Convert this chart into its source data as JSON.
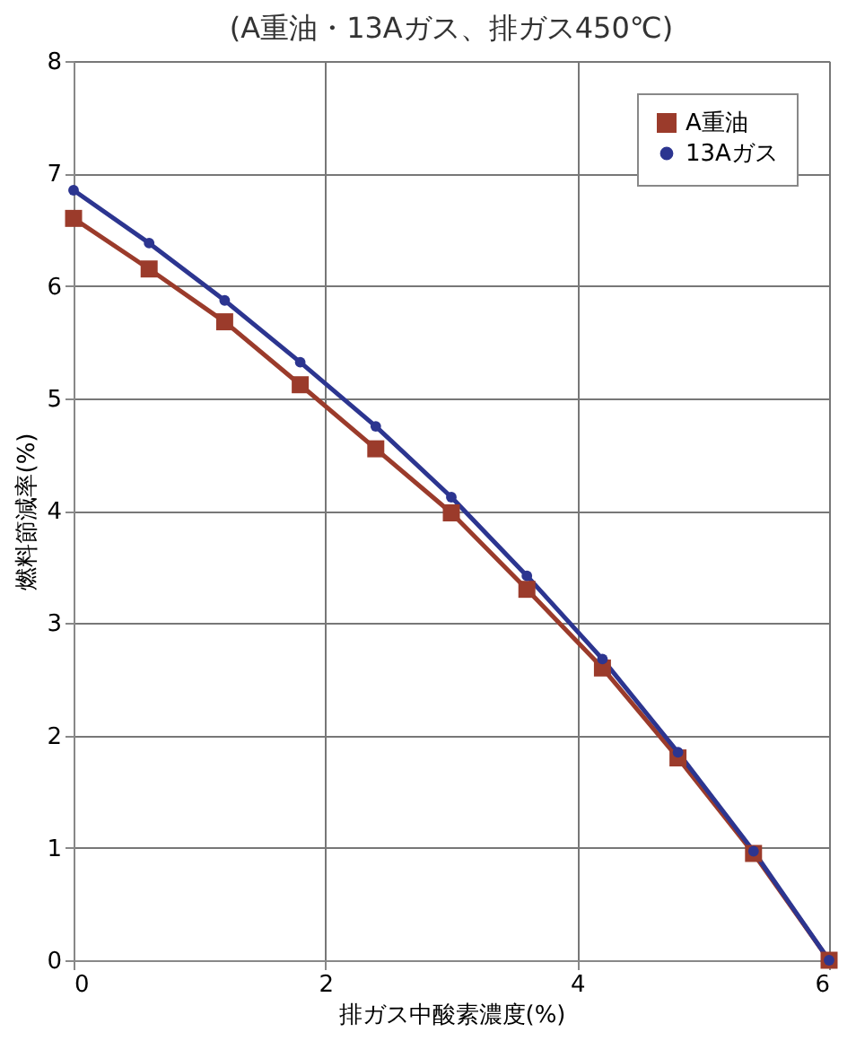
{
  "chart_data": {
    "type": "line",
    "title": "(A重油・13Aガス、排ガス450℃)",
    "xlabel": "排ガス中酸素濃度(%)",
    "ylabel": "燃料節減率(%)",
    "x": [
      0,
      0.6,
      1.2,
      1.8,
      2.4,
      3.0,
      3.6,
      4.2,
      4.8,
      5.4,
      6.0
    ],
    "series": [
      {
        "name": "A重油",
        "color": "#9b3b2b",
        "marker": "square",
        "values": [
          6.6,
          6.15,
          5.68,
          5.12,
          4.55,
          3.98,
          3.3,
          2.6,
          1.8,
          0.95,
          0
        ]
      },
      {
        "name": "13Aガス",
        "color": "#2c3590",
        "marker": "circle",
        "values": [
          6.85,
          6.38,
          5.87,
          5.32,
          4.75,
          4.12,
          3.42,
          2.68,
          1.85,
          0.97,
          0
        ]
      }
    ],
    "xlim": [
      0,
      6
    ],
    "xticks": [
      0,
      2,
      4,
      6
    ],
    "ylim": [
      0,
      8
    ],
    "yticks": [
      0,
      1,
      2,
      3,
      4,
      5,
      6,
      7,
      8
    ],
    "grid": true,
    "legend": "top right",
    "line_style": "solid"
  }
}
